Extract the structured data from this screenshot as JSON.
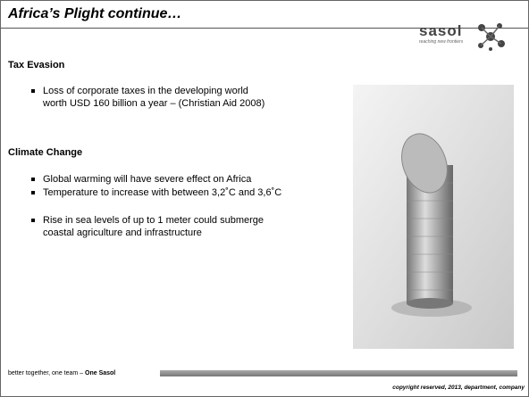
{
  "header": {
    "title": "Africa’s Plight continue…",
    "logo": "sasol",
    "logo_tagline": "reaching new frontiers"
  },
  "sections": [
    {
      "heading": "Tax Evasion",
      "bullets": [
        "Loss of corporate taxes in the developing world  worth USD 160 billion a year – (Christian Aid 2008)"
      ]
    },
    {
      "heading": "Climate Change",
      "bullets": [
        "Global warming will have severe effect on Africa",
        "Temperature to increase with between 3,2˚C and 3,6˚C",
        "Rise in sea levels of up to 1 meter could submerge coastal agriculture and infrastructure"
      ]
    }
  ],
  "footer": {
    "tagline": "better together, one team –",
    "brand": "One Sasol",
    "copyright": "copyright reserved, 2013, department, company"
  }
}
